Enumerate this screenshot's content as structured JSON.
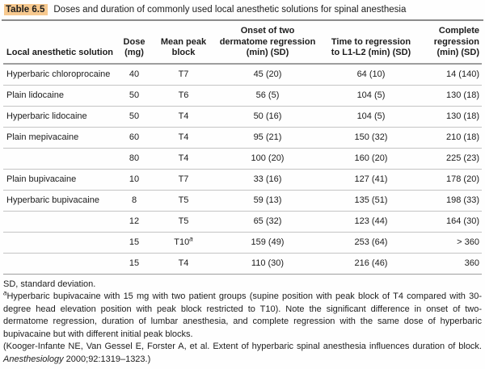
{
  "title": {
    "label": "Table 6.5",
    "text": "Doses and duration of commonly used local anesthetic solutions for spinal anesthesia"
  },
  "colors": {
    "title_highlight": "#f7c98f",
    "rule_dark": "#8c8c8c",
    "rule_light": "#c4c4c4",
    "text": "#1c1c1c"
  },
  "table": {
    "columns": [
      {
        "id": "solution",
        "header_lines": [
          "Local anesthetic solution"
        ],
        "align": "left"
      },
      {
        "id": "dose",
        "header_lines": [
          "Dose",
          "(mg)"
        ],
        "align": "center"
      },
      {
        "id": "peak_block",
        "header_lines": [
          "Mean peak",
          "block"
        ],
        "align": "center"
      },
      {
        "id": "onset",
        "header_lines": [
          "Onset of two",
          "dermatome regression",
          "(min) (SD)"
        ],
        "align": "center"
      },
      {
        "id": "regression_l1l2",
        "header_lines": [
          "Time to regression",
          "to L1-L2 (min) (SD)"
        ],
        "align": "center"
      },
      {
        "id": "complete",
        "header_lines": [
          "Complete",
          "regression",
          "(min) (SD)"
        ],
        "align": "right"
      }
    ],
    "rows": [
      {
        "solution": "Hyperbaric chloroprocaine",
        "dose": "40",
        "peak_block": "T7",
        "peak_block_sup": "",
        "onset": "45 (20)",
        "regression_l1l2": "64 (10)",
        "complete": "14 (140)"
      },
      {
        "solution": "Plain lidocaine",
        "dose": "50",
        "peak_block": "T6",
        "peak_block_sup": "",
        "onset": "56 (5)",
        "regression_l1l2": "104 (5)",
        "complete": "130 (18)"
      },
      {
        "solution": "Hyperbaric lidocaine",
        "dose": "50",
        "peak_block": "T4",
        "peak_block_sup": "",
        "onset": "50 (16)",
        "regression_l1l2": "104 (5)",
        "complete": "130 (18)"
      },
      {
        "solution": "Plain mepivacaine",
        "dose": "60",
        "peak_block": "T4",
        "peak_block_sup": "",
        "onset": "95 (21)",
        "regression_l1l2": "150 (32)",
        "complete": "210 (18)"
      },
      {
        "solution": "",
        "dose": "80",
        "peak_block": "T4",
        "peak_block_sup": "",
        "onset": "100 (20)",
        "regression_l1l2": "160 (20)",
        "complete": "225 (23)"
      },
      {
        "solution": "Plain bupivacaine",
        "dose": "10",
        "peak_block": "T7",
        "peak_block_sup": "",
        "onset": "33 (16)",
        "regression_l1l2": "127 (41)",
        "complete": "178 (20)"
      },
      {
        "solution": "Hyperbaric bupivacaine",
        "dose": "8",
        "peak_block": "T5",
        "peak_block_sup": "",
        "onset": "59 (13)",
        "regression_l1l2": "135 (51)",
        "complete": "198 (33)"
      },
      {
        "solution": "",
        "dose": "12",
        "peak_block": "T5",
        "peak_block_sup": "",
        "onset": "65 (32)",
        "regression_l1l2": "123 (44)",
        "complete": "164 (30)"
      },
      {
        "solution": "",
        "dose": "15",
        "peak_block": "T10",
        "peak_block_sup": "a",
        "onset": "159 (49)",
        "regression_l1l2": "253 (64)",
        "complete": "> 360"
      },
      {
        "solution": "",
        "dose": "15",
        "peak_block": "T4",
        "peak_block_sup": "",
        "onset": "110 (30)",
        "regression_l1l2": "216 (46)",
        "complete": "360"
      }
    ]
  },
  "footnotes": {
    "abbrev": "SD, standard deviation.",
    "note_marker": "a",
    "note_text": "Hyperbaric bupivacaine with 15 mg with two patient groups (supine position with peak block of T4 compared with 30-degree head elevation position with peak block restricted to T10). Note the significant difference in onset of two-dermatome regression, duration of lumbar anesthesia, and complete regression with the same dose of hyperbaric bupivacaine but with different initial peak blocks.",
    "citation_prefix": "(Kooger-Infante NE, Van Gessel E, Forster A, et al. Extent of hyperbaric spinal anesthesia influences duration of block. ",
    "citation_journal": "Anesthesiology",
    "citation_suffix": " 2000;92:1319–1323.)"
  }
}
